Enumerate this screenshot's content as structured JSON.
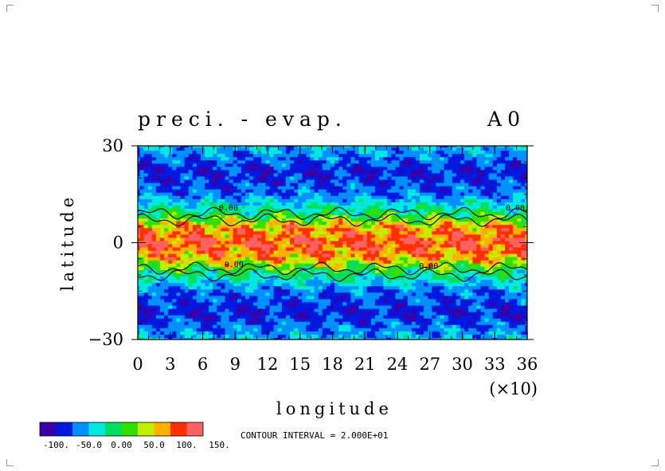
{
  "chart_data": {
    "type": "heatmap",
    "title": "preci. - evap.",
    "panel_label": "A0",
    "xlabel": "longitude",
    "ylabel": "latitude",
    "x_multiplier_label": "(×10)",
    "x_ticks": [
      "0",
      "3",
      "6",
      "9",
      "12",
      "15",
      "18",
      "21",
      "24",
      "27",
      "30",
      "33",
      "36"
    ],
    "y_ticks": [
      "30",
      "0",
      "−30"
    ],
    "xlim": [
      0,
      36
    ],
    "ylim": [
      -30,
      30
    ],
    "contour_interval_text": "CONTOUR INTERVAL = 2.000E+01",
    "zero_contour_labels": [
      "0.00",
      "0.00",
      "0.00",
      "0.00"
    ],
    "colorbar": {
      "levels": [
        -100,
        -50,
        0,
        50,
        100,
        150
      ],
      "tick_labels": [
        "-100.",
        "-50.0",
        "0.00",
        "50.0",
        "100.",
        "150."
      ],
      "colors": [
        "#3a00a8",
        "#0018e0",
        "#0090ff",
        "#00e8e0",
        "#00e060",
        "#30e000",
        "#c0f000",
        "#ffb000",
        "#ff3000",
        "#ff6060"
      ]
    },
    "field_description_by_latitude": [
      {
        "lat": 30,
        "value": -50
      },
      {
        "lat": 22,
        "value": -90
      },
      {
        "lat": 15,
        "value": -70
      },
      {
        "lat": 9,
        "value": -10
      },
      {
        "lat": 5,
        "value": 60
      },
      {
        "lat": 0,
        "value": 95
      },
      {
        "lat": -5,
        "value": 60
      },
      {
        "lat": -9,
        "value": -10
      },
      {
        "lat": -15,
        "value": -70
      },
      {
        "lat": -22,
        "value": -90
      },
      {
        "lat": -30,
        "value": -50
      }
    ]
  }
}
